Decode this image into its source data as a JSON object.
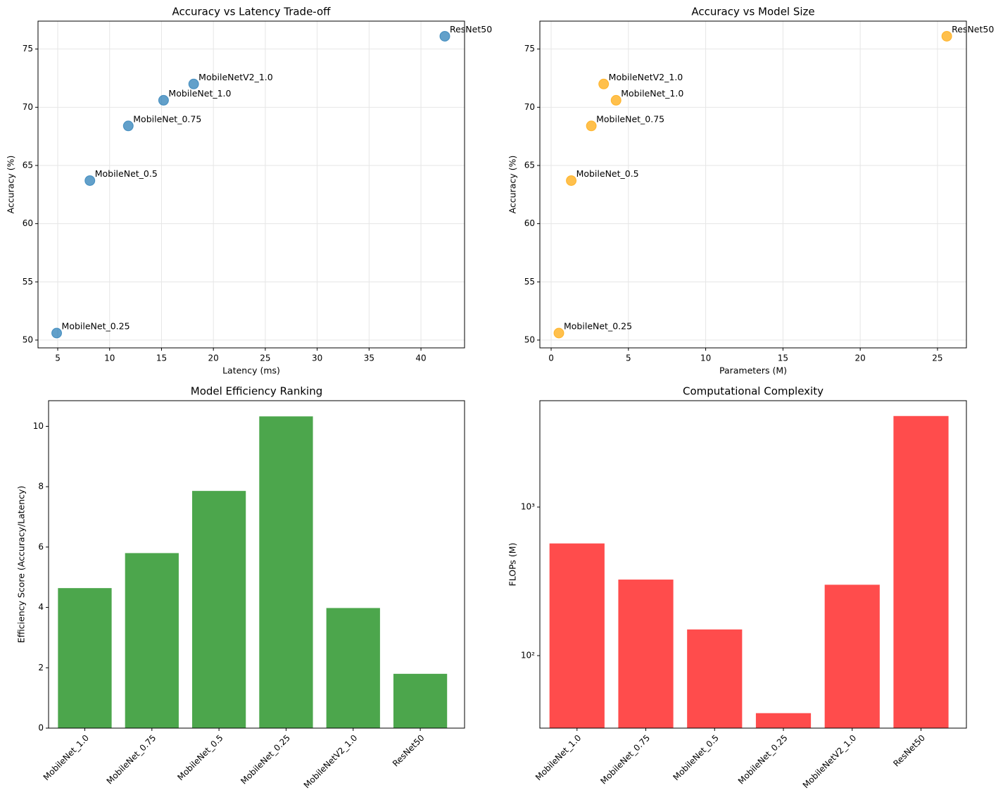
{
  "chart_data": [
    {
      "type": "scatter",
      "title": "Accuracy vs Latency Trade-off",
      "xlabel": "Latency (ms)",
      "ylabel": "Accuracy (%)",
      "labels": [
        "MobileNet_1.0",
        "MobileNet_0.75",
        "MobileNet_0.5",
        "MobileNet_0.25",
        "MobileNetV2_1.0",
        "ResNet50"
      ],
      "x": [
        15.2,
        11.8,
        8.1,
        4.9,
        18.1,
        42.3
      ],
      "values": [
        70.6,
        68.4,
        63.7,
        50.6,
        72.0,
        76.1
      ],
      "color": "#1f77b4",
      "alpha": 0.7,
      "grid": true,
      "xlim": [
        3.1,
        44.2
      ],
      "xticks": [
        5,
        10,
        15,
        20,
        25,
        30,
        35,
        40
      ],
      "ylim": [
        49.33,
        77.4
      ],
      "yticks": [
        50,
        55,
        60,
        65,
        70,
        75
      ]
    },
    {
      "type": "scatter",
      "title": "Accuracy vs Model Size",
      "xlabel": "Parameters (M)",
      "ylabel": "Accuracy (%)",
      "labels": [
        "MobileNet_1.0",
        "MobileNet_0.75",
        "MobileNet_0.5",
        "MobileNet_0.25",
        "MobileNetV2_1.0",
        "ResNet50"
      ],
      "x": [
        4.2,
        2.6,
        1.3,
        0.5,
        3.4,
        25.6
      ],
      "values": [
        70.6,
        68.4,
        63.7,
        50.6,
        72.0,
        76.1
      ],
      "color": "#ffa500",
      "alpha": 0.7,
      "grid": true,
      "xlim": [
        -0.73,
        26.87
      ],
      "xticks": [
        0,
        5,
        10,
        15,
        20,
        25
      ],
      "ylim": [
        49.33,
        77.4
      ],
      "yticks": [
        50,
        55,
        60,
        65,
        70,
        75
      ]
    },
    {
      "type": "bar",
      "title": "Model Efficiency Ranking",
      "ylabel": "Efficiency Score (Accuracy/Latency)",
      "categories": [
        "MobileNet_1.0",
        "MobileNet_0.75",
        "MobileNet_0.5",
        "MobileNet_0.25",
        "MobileNetV2_1.0",
        "ResNet50"
      ],
      "values": [
        4.64,
        5.8,
        7.86,
        10.33,
        3.98,
        1.8
      ],
      "color": "#008000",
      "alpha": 0.7,
      "grid": false,
      "ylim": [
        0,
        10.85
      ],
      "yticks": [
        0,
        2,
        4,
        6,
        8,
        10
      ]
    },
    {
      "type": "bar",
      "title": "Computational Complexity",
      "ylabel": "FLOPs (M)",
      "categories": [
        "MobileNet_1.0",
        "MobileNet_0.75",
        "MobileNet_0.5",
        "MobileNet_0.25",
        "MobileNetV2_1.0",
        "ResNet50"
      ],
      "values": [
        569,
        325,
        150,
        41,
        300,
        4100
      ],
      "color": "#ff0000",
      "alpha": 0.7,
      "grid": false,
      "log_scale": true,
      "ylim": [
        32.5,
        5200
      ],
      "yticks": [
        {
          "value": 100,
          "label": "10²"
        },
        {
          "value": 1000,
          "label": "10³"
        }
      ]
    }
  ]
}
